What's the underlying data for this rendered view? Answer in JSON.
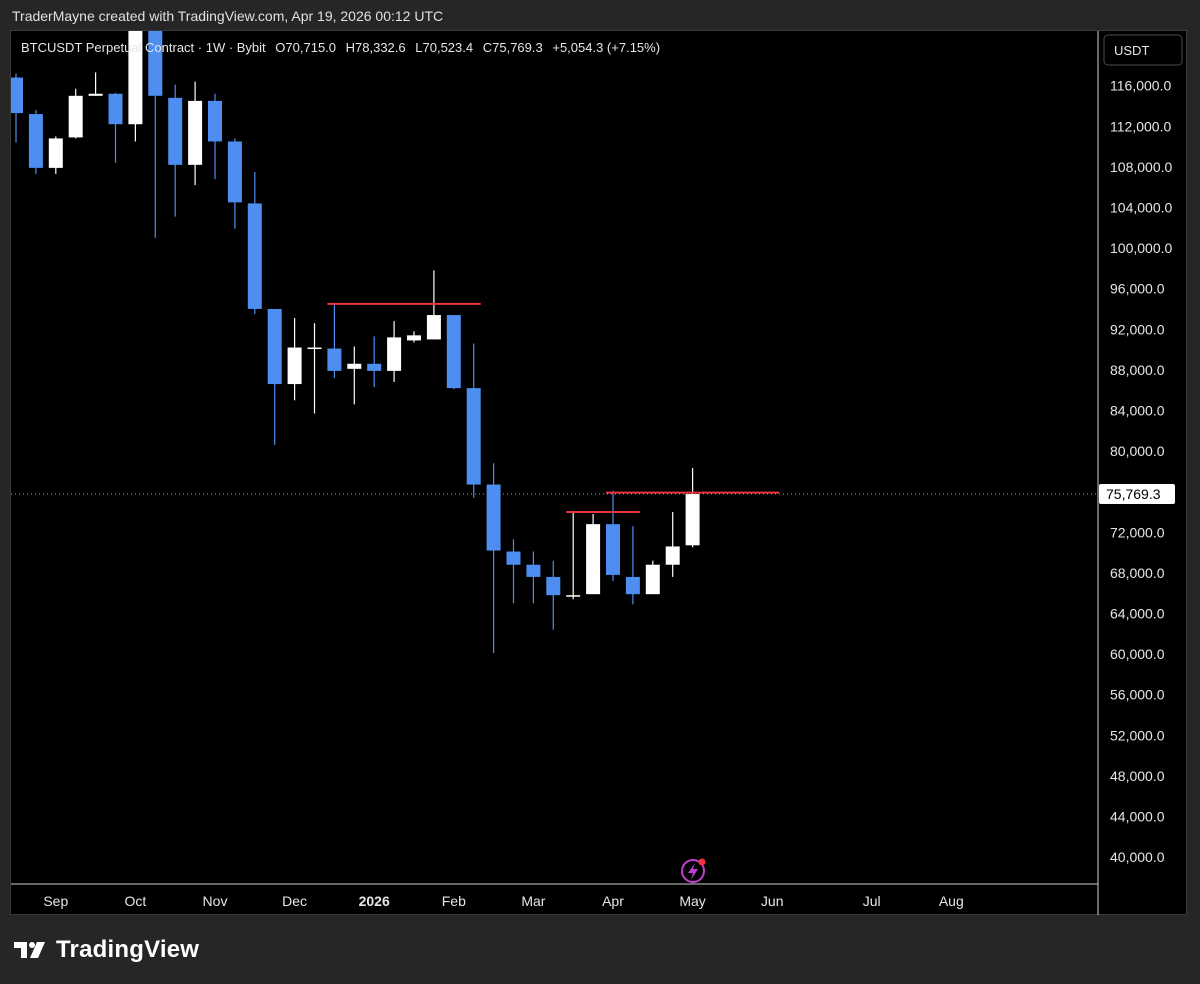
{
  "header": {
    "caption": "TraderMayne created with TradingView.com, Apr 19, 2026 00:12 UTC"
  },
  "legend": {
    "symbol": "BTCUSDT Perpetual Contract · 1W · Bybit",
    "open": "O70,715.0",
    "high": "H78,332.6",
    "low": "L70,523.4",
    "close": "C75,769.3",
    "change": "+5,054.3 (+7.15%)"
  },
  "axis": {
    "currency_label": "USDT",
    "last_price_label": "75,769.3"
  },
  "footer": {
    "brand": "TradingView",
    "logo_icon": "tradingview-logo-icon"
  },
  "colors": {
    "up": "#ffffff",
    "down": "#4d8ef0",
    "level_line": "#f0323c",
    "background": "#000000",
    "text": "#d1d4dc"
  },
  "chart_data": {
    "type": "candlestick",
    "interval": "1W",
    "ylim": [
      38000,
      120000
    ],
    "y_ticks": [
      "116,000.0",
      "112,000.0",
      "108,000.0",
      "104,000.0",
      "100,000.0",
      "96,000.0",
      "92,000.0",
      "88,000.0",
      "84,000.0",
      "80,000.0",
      "72,000.0",
      "68,000.0",
      "64,000.0",
      "60,000.0",
      "56,000.0",
      "52,000.0",
      "48,000.0",
      "44,000.0",
      "40,000.0"
    ],
    "y_tick_values": [
      116000,
      112000,
      108000,
      104000,
      100000,
      96000,
      92000,
      88000,
      84000,
      80000,
      72000,
      68000,
      64000,
      60000,
      56000,
      52000,
      48000,
      44000,
      40000
    ],
    "x_ticks": [
      {
        "label": "Sep",
        "index": 2,
        "bold": false
      },
      {
        "label": "Oct",
        "index": 6,
        "bold": false
      },
      {
        "label": "Nov",
        "index": 10,
        "bold": false
      },
      {
        "label": "Dec",
        "index": 14,
        "bold": false
      },
      {
        "label": "2026",
        "index": 18,
        "bold": true
      },
      {
        "label": "Feb",
        "index": 22,
        "bold": false
      },
      {
        "label": "Mar",
        "index": 26,
        "bold": false
      },
      {
        "label": "Apr",
        "index": 30,
        "bold": false
      },
      {
        "label": "May",
        "index": 34,
        "bold": false
      },
      {
        "label": "Jun",
        "index": 38,
        "bold": false
      },
      {
        "label": "Jul",
        "index": 43,
        "bold": false
      },
      {
        "label": "Aug",
        "index": 47,
        "bold": false
      }
    ],
    "candles": [
      {
        "o": 116800,
        "h": 117200,
        "l": 110400,
        "c": 113300
      },
      {
        "o": 113200,
        "h": 113600,
        "l": 107300,
        "c": 107900
      },
      {
        "o": 107900,
        "h": 111000,
        "l": 107300,
        "c": 110800
      },
      {
        "o": 110900,
        "h": 115700,
        "l": 110800,
        "c": 115000
      },
      {
        "o": 115000,
        "h": 117300,
        "l": 115000,
        "c": 115200
      },
      {
        "o": 115200,
        "h": 115300,
        "l": 108400,
        "c": 112200
      },
      {
        "o": 112200,
        "h": 124500,
        "l": 110500,
        "c": 124400
      },
      {
        "o": 124500,
        "h": 126200,
        "l": 101000,
        "c": 115000
      },
      {
        "o": 114800,
        "h": 116100,
        "l": 103100,
        "c": 108200
      },
      {
        "o": 108200,
        "h": 116400,
        "l": 106200,
        "c": 114500
      },
      {
        "o": 114500,
        "h": 115200,
        "l": 106800,
        "c": 110500
      },
      {
        "o": 110500,
        "h": 110800,
        "l": 101900,
        "c": 104500
      },
      {
        "o": 104400,
        "h": 107500,
        "l": 93500,
        "c": 94000
      },
      {
        "o": 94000,
        "h": 94000,
        "l": 80600,
        "c": 86600
      },
      {
        "o": 86600,
        "h": 93100,
        "l": 85000,
        "c": 90200
      },
      {
        "o": 90100,
        "h": 92600,
        "l": 83700,
        "c": 90200
      },
      {
        "o": 90100,
        "h": 94500,
        "l": 87200,
        "c": 87900
      },
      {
        "o": 88100,
        "h": 90300,
        "l": 84600,
        "c": 88600
      },
      {
        "o": 88600,
        "h": 91300,
        "l": 86300,
        "c": 87900
      },
      {
        "o": 87900,
        "h": 92800,
        "l": 86800,
        "c": 91200
      },
      {
        "o": 90900,
        "h": 91800,
        "l": 90700,
        "c": 91400
      },
      {
        "o": 91000,
        "h": 97800,
        "l": 91000,
        "c": 93400
      },
      {
        "o": 93400,
        "h": 93400,
        "l": 86100,
        "c": 86200
      },
      {
        "o": 86200,
        "h": 90600,
        "l": 75400,
        "c": 76700
      },
      {
        "o": 76700,
        "h": 78800,
        "l": 60100,
        "c": 70200
      },
      {
        "o": 70100,
        "h": 71300,
        "l": 65000,
        "c": 68800
      },
      {
        "o": 68800,
        "h": 70100,
        "l": 65000,
        "c": 67600
      },
      {
        "o": 67600,
        "h": 69200,
        "l": 62400,
        "c": 65800
      },
      {
        "o": 65800,
        "h": 73900,
        "l": 65400,
        "c": 65800
      },
      {
        "o": 65900,
        "h": 73800,
        "l": 65900,
        "c": 72800
      },
      {
        "o": 72800,
        "h": 76100,
        "l": 67200,
        "c": 67800
      },
      {
        "o": 67600,
        "h": 72600,
        "l": 64900,
        "c": 65900
      },
      {
        "o": 65900,
        "h": 69200,
        "l": 65900,
        "c": 68800
      },
      {
        "o": 68800,
        "h": 74000,
        "l": 67600,
        "c": 70600
      },
      {
        "o": 70715,
        "h": 78332.6,
        "l": 70523.4,
        "c": 75769.3
      }
    ],
    "levels": [
      {
        "price": 94500,
        "from_index": 16,
        "to_index": 23
      },
      {
        "price": 74000,
        "from_index": 28,
        "to_index": 31
      },
      {
        "price": 75900,
        "from_index": 30,
        "to_index": 38
      }
    ],
    "last_price": 75769.3
  }
}
